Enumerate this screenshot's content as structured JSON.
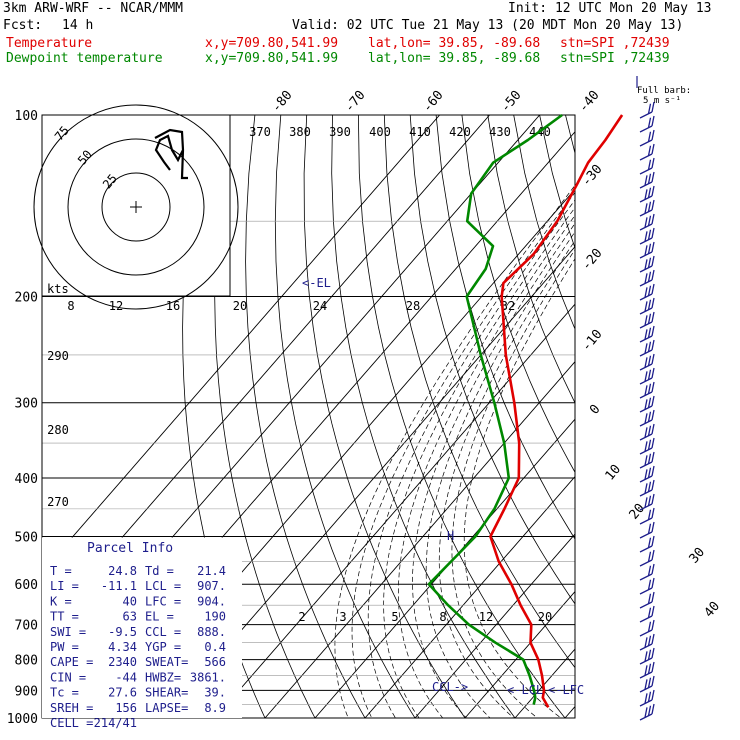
{
  "header": {
    "model": "3km ARW-WRF -- NCAR/MMM",
    "init": "Init: 12 UTC Mon 20 May 13",
    "fcst_label": "Fcst:",
    "fcst_value": "14 h",
    "valid": "Valid: 02 UTC Tue 21 May 13 (20 MDT Mon 20 May 13)",
    "temp_line": {
      "label": "Temperature",
      "xy": "x,y=709.80,541.99",
      "latlon": "lat,lon= 39.85, -89.68",
      "stn": "stn=SPI ,72439"
    },
    "dew_line": {
      "label": "Dewpoint temperature",
      "xy": "x,y=709.80,541.99",
      "latlon": "lat,lon= 39.85, -89.68",
      "stn": "stn=SPI ,72439"
    }
  },
  "barb_legend": {
    "line1": "Full barb:",
    "line2": "5 m s⁻¹"
  },
  "colors": {
    "temperature": "#e00000",
    "dewpoint": "#008800",
    "label_blue": "#1e1e8c",
    "barb": "#1e1e8c"
  },
  "hodograph": {
    "rings": [
      "25",
      "50",
      "75"
    ],
    "kts_label": "kts"
  },
  "parcel_info": {
    "title": "Parcel Info",
    "rows": [
      [
        "T  =",
        "24.8",
        "Td =",
        "21.4"
      ],
      [
        "LI =",
        "-11.1",
        "LCL =",
        "907."
      ],
      [
        "K  =",
        "40",
        "LFC =",
        "904."
      ],
      [
        "TT =",
        "63",
        "EL  =",
        "190"
      ],
      [
        "SWI =",
        "-9.5",
        "CCL =",
        "888."
      ],
      [
        "PW =",
        "4.34",
        "YGP =",
        "0.4"
      ],
      [
        "CAPE =",
        "2340",
        "SWEAT=",
        "566"
      ],
      [
        "CIN =",
        "-44",
        "HWBZ=",
        "3861."
      ],
      [
        "Tc  =",
        "27.6",
        "SHEAR=",
        "39."
      ],
      [
        "SREH =",
        "156",
        "LAPSE=",
        "8.9"
      ],
      [
        "CELL =",
        "214/41",
        "",
        ""
      ]
    ]
  },
  "annotations": {
    "el": "<-EL",
    "ccl": "CCL->",
    "lcl": "<-LCL",
    "lfc": "<-LFC",
    "h": "H"
  },
  "chart_data": {
    "type": "line",
    "title": "",
    "ylabel": "",
    "y_log_pressure": true,
    "ylim": [
      1000,
      100
    ],
    "pressure_labels": [
      "100",
      "200",
      "300",
      "400",
      "500",
      "600",
      "700",
      "800",
      "900",
      "1000"
    ],
    "isotherm_labels_top": [
      "-80",
      "-70",
      "-60",
      "-50",
      "-40"
    ],
    "isotherm_labels_right": [
      "-30",
      "-20",
      "-10",
      "0",
      "10",
      "20",
      "30",
      "40"
    ],
    "theta_e_labels": [
      "370",
      "380",
      "390",
      "400",
      "410",
      "420",
      "430",
      "440"
    ],
    "windspeed_labels": [
      "8",
      "12",
      "16",
      "20",
      "24",
      "28",
      "32"
    ],
    "mixing_ratio_labels": [
      "2",
      "3",
      "5",
      "8",
      "12",
      "20"
    ],
    "thickness_labels": [
      "290",
      "280",
      "270"
    ],
    "series": [
      {
        "name": "Temperature",
        "color": "#e00000",
        "points": [
          {
            "p": 960,
            "t": 24.8
          },
          {
            "p": 925,
            "t": 22.0
          },
          {
            "p": 900,
            "t": 21.0
          },
          {
            "p": 850,
            "t": 18.0
          },
          {
            "p": 800,
            "t": 14.5
          },
          {
            "p": 750,
            "t": 10.0
          },
          {
            "p": 700,
            "t": 7.0
          },
          {
            "p": 650,
            "t": 1.5
          },
          {
            "p": 600,
            "t": -4.0
          },
          {
            "p": 550,
            "t": -10.5
          },
          {
            "p": 500,
            "t": -16.5
          },
          {
            "p": 450,
            "t": -18.5
          },
          {
            "p": 400,
            "t": -21.0
          },
          {
            "p": 350,
            "t": -27.0
          },
          {
            "p": 300,
            "t": -35.0
          },
          {
            "p": 250,
            "t": -45.0
          },
          {
            "p": 200,
            "t": -56.0
          },
          {
            "p": 190,
            "t": -58.0
          },
          {
            "p": 170,
            "t": -57.0
          },
          {
            "p": 150,
            "t": -58.0
          },
          {
            "p": 130,
            "t": -60.5
          },
          {
            "p": 120,
            "t": -62.0
          },
          {
            "p": 110,
            "t": -62.5
          },
          {
            "p": 100,
            "t": -63.5
          }
        ]
      },
      {
        "name": "Dewpoint temperature",
        "color": "#008800",
        "points": [
          {
            "p": 950,
            "t": 21.4
          },
          {
            "p": 925,
            "t": 20.5
          },
          {
            "p": 900,
            "t": 19.0
          },
          {
            "p": 850,
            "t": 15.5
          },
          {
            "p": 800,
            "t": 11.5
          },
          {
            "p": 750,
            "t": 3.0
          },
          {
            "p": 700,
            "t": -5.5
          },
          {
            "p": 650,
            "t": -13.0
          },
          {
            "p": 600,
            "t": -20.5
          },
          {
            "p": 550,
            "t": -20.0
          },
          {
            "p": 500,
            "t": -19.5
          },
          {
            "p": 450,
            "t": -20.5
          },
          {
            "p": 400,
            "t": -23.0
          },
          {
            "p": 350,
            "t": -30.0
          },
          {
            "p": 300,
            "t": -39.0
          },
          {
            "p": 250,
            "t": -50.0
          },
          {
            "p": 200,
            "t": -63.0
          },
          {
            "p": 180,
            "t": -64.0
          },
          {
            "p": 165,
            "t": -66.5
          },
          {
            "p": 150,
            "t": -76.0
          },
          {
            "p": 135,
            "t": -80.0
          },
          {
            "p": 120,
            "t": -81.0
          },
          {
            "p": 110,
            "t": -78.0
          },
          {
            "p": 100,
            "t": -75.5
          }
        ]
      }
    ]
  }
}
